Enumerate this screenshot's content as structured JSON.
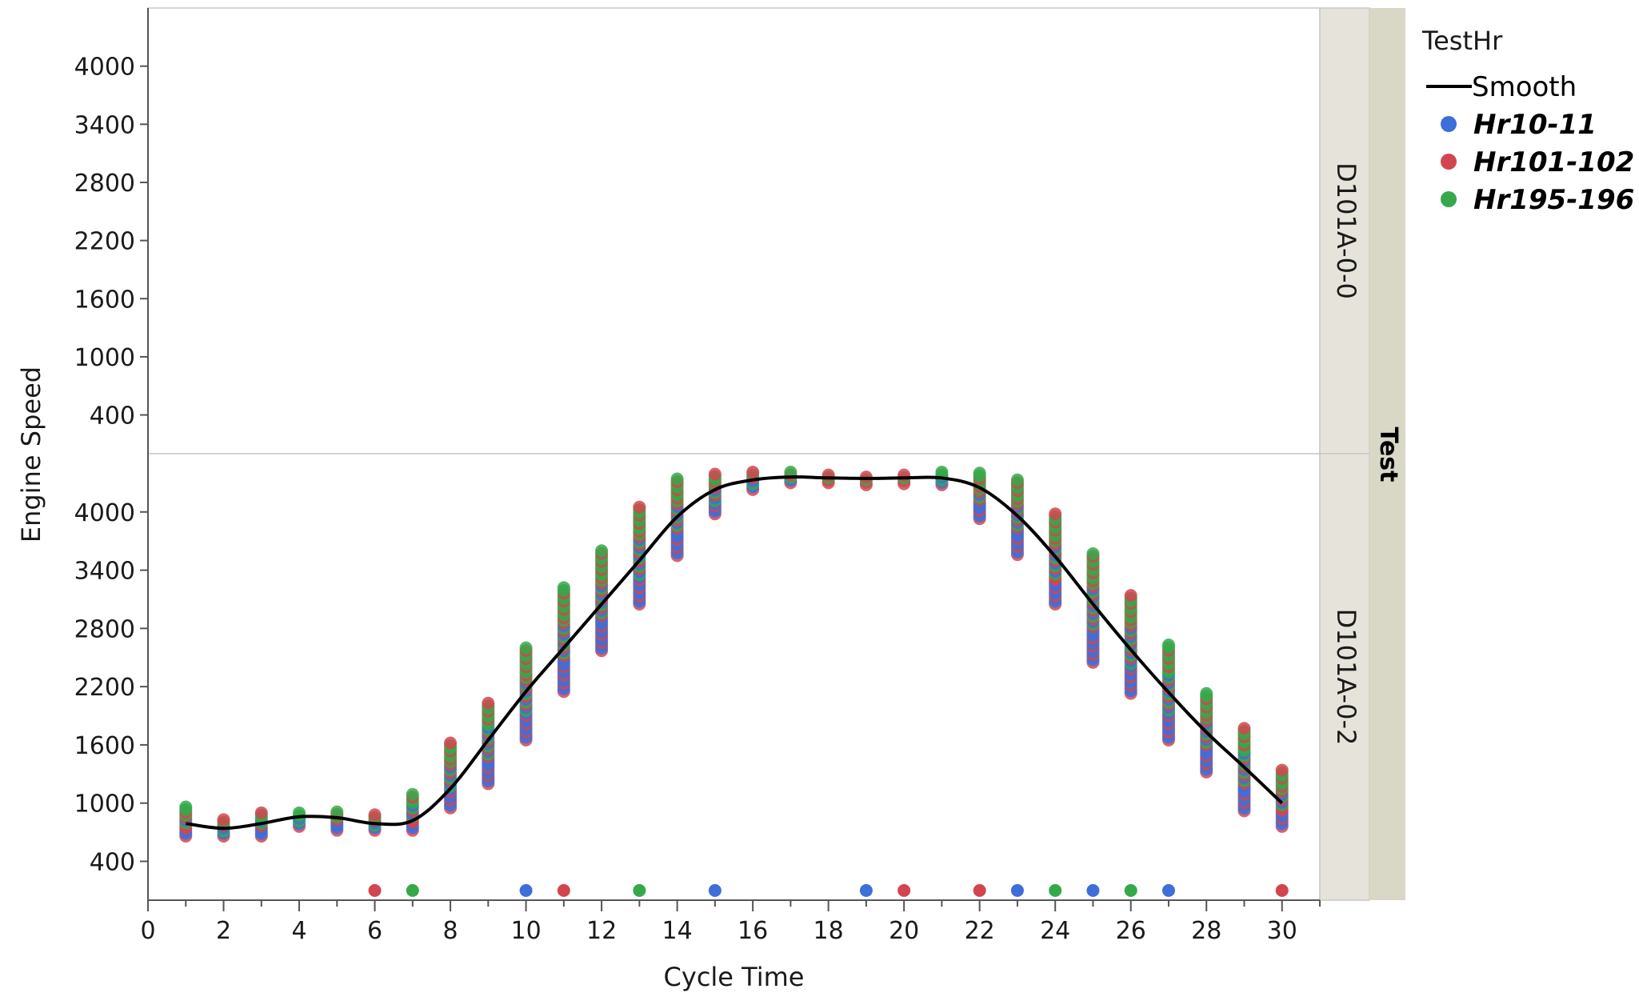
{
  "chart_data": {
    "type": "scatter",
    "xlabel": "Cycle Time",
    "ylabel": "Engine Speed",
    "xlim": [
      0,
      31
    ],
    "ylim": [
      0,
      4600
    ],
    "x_ticks": [
      "0",
      "2",
      "4",
      "6",
      "8",
      "10",
      "12",
      "14",
      "16",
      "18",
      "20",
      "22",
      "24",
      "26",
      "28",
      "30"
    ],
    "y_ticks": [
      "400",
      "1000",
      "1600",
      "2200",
      "2800",
      "3400",
      "4000"
    ],
    "grid": false,
    "facet_title": "Test",
    "facets": [
      "D101A-0-0",
      "D101A-0-2"
    ],
    "legend": {
      "title": "TestHr",
      "position": "right",
      "smooth_label": "Smooth",
      "items": [
        {
          "name": "Hr10-11",
          "color": "#3e6fd8"
        },
        {
          "name": "Hr101-102",
          "color": "#d2454f"
        },
        {
          "name": "Hr195-196",
          "color": "#35a94a"
        }
      ]
    },
    "smooth": {
      "x": [
        1,
        2,
        3,
        4,
        5,
        6,
        7,
        8,
        9,
        10,
        11,
        12,
        13,
        14,
        15,
        16,
        17,
        18,
        19,
        20,
        21,
        22,
        23,
        24,
        25,
        26,
        27,
        28,
        29,
        30
      ],
      "y": [
        790,
        740,
        790,
        860,
        850,
        790,
        820,
        1150,
        1650,
        2150,
        2600,
        3050,
        3500,
        3950,
        4230,
        4330,
        4360,
        4350,
        4345,
        4350,
        4350,
        4250,
        3960,
        3540,
        3050,
        2580,
        2140,
        1730,
        1370,
        1000
      ]
    },
    "ranges": {
      "x": [
        1,
        2,
        3,
        4,
        5,
        6,
        7,
        8,
        9,
        10,
        11,
        12,
        13,
        14,
        15,
        16,
        17,
        18,
        19,
        20,
        21,
        22,
        23,
        24,
        25,
        26,
        27,
        28,
        29,
        30
      ],
      "low": [
        660,
        660,
        660,
        760,
        720,
        720,
        720,
        950,
        1200,
        1650,
        2150,
        2570,
        3050,
        3550,
        3980,
        4230,
        4300,
        4300,
        4280,
        4290,
        4280,
        3930,
        3560,
        3050,
        2450,
        2130,
        1650,
        1320,
        920,
        760
      ],
      "high": [
        960,
        830,
        900,
        900,
        910,
        880,
        1090,
        1620,
        2030,
        2600,
        3220,
        3600,
        4050,
        4340,
        4390,
        4410,
        4410,
        4380,
        4360,
        4380,
        4410,
        4400,
        4330,
        3980,
        3570,
        3140,
        2630,
        2130,
        1770,
        1340
      ]
    },
    "low_points": [
      {
        "x": 6,
        "series": 1
      },
      {
        "x": 7,
        "series": 2
      },
      {
        "x": 10,
        "series": 0
      },
      {
        "x": 11,
        "series": 1
      },
      {
        "x": 13,
        "series": 2
      },
      {
        "x": 15,
        "series": 0
      },
      {
        "x": 19,
        "series": 0
      },
      {
        "x": 20,
        "series": 1
      },
      {
        "x": 22,
        "series": 1
      },
      {
        "x": 23,
        "series": 0
      },
      {
        "x": 24,
        "series": 2
      },
      {
        "x": 25,
        "series": 0
      },
      {
        "x": 26,
        "series": 2
      },
      {
        "x": 27,
        "series": 0
      },
      {
        "x": 30,
        "series": 1
      }
    ],
    "low_points_y": 100
  }
}
